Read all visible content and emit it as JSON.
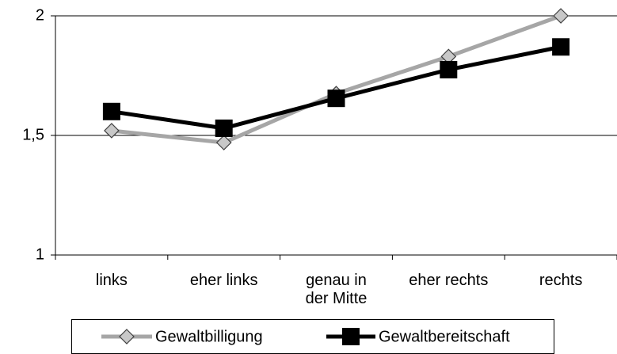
{
  "chart_data": {
    "type": "line",
    "categories": [
      "links",
      "eher links",
      "genau in\nder Mitte",
      "eher rechts",
      "rechts"
    ],
    "series": [
      {
        "name": "Gewaltbilligung",
        "color": "#a6a6a6",
        "marker": "diamond",
        "values": [
          1.52,
          1.47,
          1.675,
          1.83,
          2.0
        ]
      },
      {
        "name": "Gewaltbereitschaft",
        "color": "#000000",
        "marker": "square",
        "values": [
          1.6,
          1.53,
          1.655,
          1.775,
          1.87
        ]
      }
    ],
    "ylim": [
      1,
      2
    ],
    "yticks": [
      1,
      {
        "value": 1.5,
        "label": "1,5"
      },
      2
    ],
    "grid": true,
    "legend": "bottom"
  }
}
